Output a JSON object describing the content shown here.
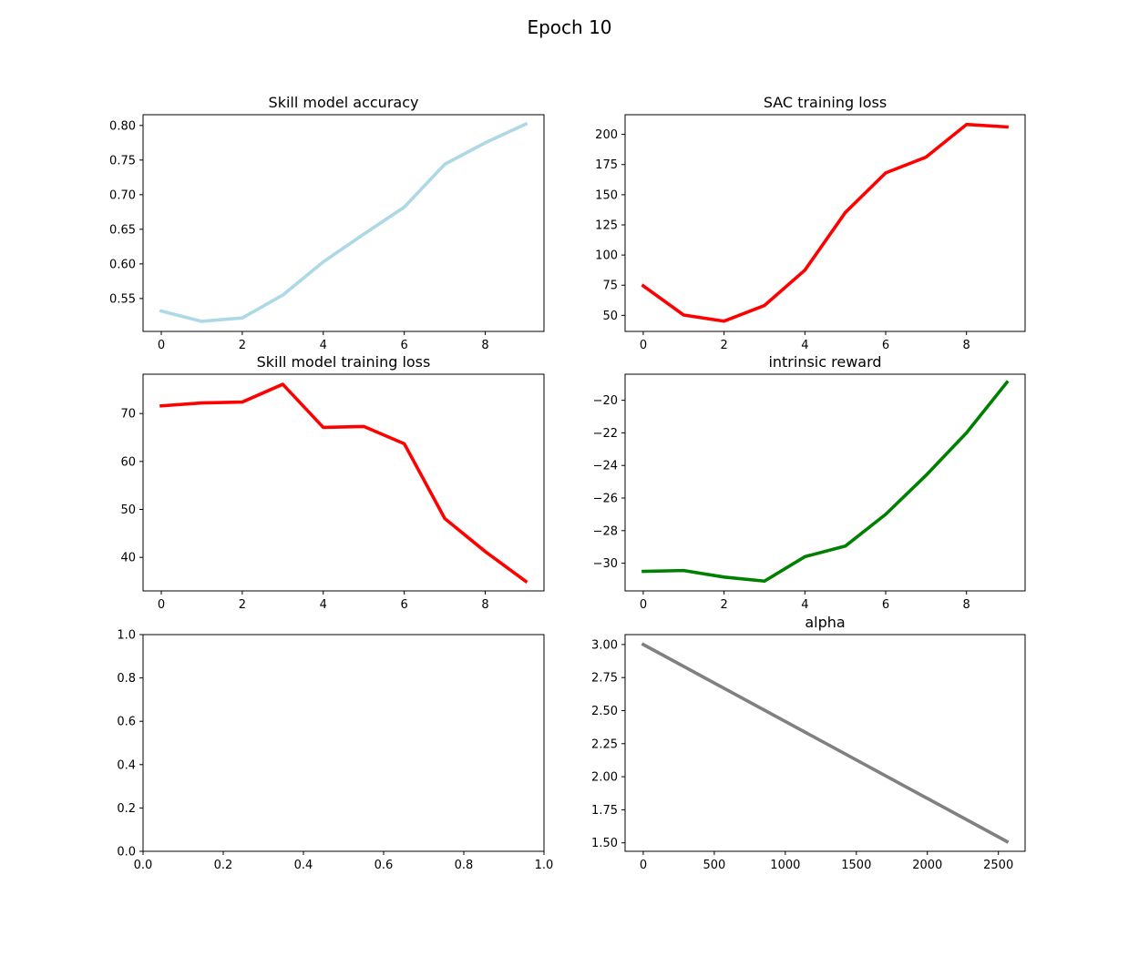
{
  "figure": {
    "suptitle": "Epoch 10"
  },
  "chart_data": [
    {
      "type": "line",
      "title": "Skill model accuracy",
      "xlabel": "",
      "ylabel": "",
      "xlim": [
        -0.45,
        9.45
      ],
      "ylim": [
        0.5025,
        0.8155
      ],
      "xticks": [
        0,
        2,
        4,
        6,
        8
      ],
      "xtick_labels": [
        "0",
        "2",
        "4",
        "6",
        "8"
      ],
      "yticks": [
        0.55,
        0.6,
        0.65,
        0.7,
        0.75,
        0.8
      ],
      "ytick_labels": [
        "0.55",
        "0.60",
        "0.65",
        "0.70",
        "0.75",
        "0.80"
      ],
      "grid": false,
      "series": [
        {
          "color": "#add8e6",
          "x": [
            0,
            1,
            2,
            3,
            4,
            5,
            6,
            7,
            8,
            9
          ],
          "values": [
            0.532,
            0.517,
            0.522,
            0.555,
            0.603,
            0.643,
            0.682,
            0.744,
            0.775,
            0.802
          ]
        }
      ]
    },
    {
      "type": "line",
      "title": "SAC training loss",
      "xlabel": "",
      "ylabel": "",
      "xlim": [
        -0.45,
        9.45
      ],
      "ylim": [
        36.7,
        216.3
      ],
      "xticks": [
        0,
        2,
        4,
        6,
        8
      ],
      "xtick_labels": [
        "0",
        "2",
        "4",
        "6",
        "8"
      ],
      "yticks": [
        50,
        75,
        100,
        125,
        150,
        175,
        200
      ],
      "ytick_labels": [
        "50",
        "75",
        "100",
        "125",
        "150",
        "175",
        "200"
      ],
      "grid": false,
      "series": [
        {
          "color": "#ff0000",
          "x": [
            0,
            1,
            2,
            3,
            4,
            5,
            6,
            7,
            8,
            9
          ],
          "values": [
            74.5,
            50.3,
            45.2,
            58.2,
            87.5,
            135.2,
            168.1,
            181.2,
            208.2,
            206.2
          ]
        }
      ]
    },
    {
      "type": "line",
      "title": "Skill model training loss",
      "xlabel": "",
      "ylabel": "",
      "xlim": [
        -0.45,
        9.45
      ],
      "ylim": [
        33.0,
        78.2
      ],
      "xticks": [
        0,
        2,
        4,
        6,
        8
      ],
      "xtick_labels": [
        "0",
        "2",
        "4",
        "6",
        "8"
      ],
      "yticks": [
        40,
        50,
        60,
        70
      ],
      "ytick_labels": [
        "40",
        "50",
        "60",
        "70"
      ],
      "grid": false,
      "series": [
        {
          "color": "#ff0000",
          "x": [
            0,
            1,
            2,
            3,
            4,
            5,
            6,
            7,
            8,
            9
          ],
          "values": [
            71.6,
            72.2,
            72.4,
            76.1,
            67.1,
            67.3,
            63.7,
            48.1,
            41.2,
            35.0
          ]
        }
      ]
    },
    {
      "type": "line",
      "title": "intrinsic reward",
      "xlabel": "",
      "ylabel": "",
      "xlim": [
        -0.45,
        9.45
      ],
      "ylim": [
        -31.7,
        -18.4
      ],
      "xticks": [
        0,
        2,
        4,
        6,
        8
      ],
      "xtick_labels": [
        "0",
        "2",
        "4",
        "6",
        "8"
      ],
      "yticks": [
        -30,
        -28,
        -26,
        -24,
        -22,
        -20
      ],
      "ytick_labels": [
        "−30",
        "−28",
        "−26",
        "−24",
        "−22",
        "−20"
      ],
      "grid": false,
      "series": [
        {
          "color": "#008000",
          "x": [
            0,
            1,
            2,
            3,
            4,
            5,
            6,
            7,
            8,
            9
          ],
          "values": [
            -30.5,
            -30.45,
            -30.85,
            -31.1,
            -29.6,
            -28.95,
            -27.0,
            -24.6,
            -22.0,
            -18.9
          ]
        }
      ]
    },
    {
      "type": "line",
      "title": "",
      "xlabel": "",
      "ylabel": "",
      "xlim": [
        0.0,
        1.0
      ],
      "ylim": [
        0.0,
        1.0
      ],
      "xticks": [
        0.0,
        0.2,
        0.4,
        0.6,
        0.8,
        1.0
      ],
      "xtick_labels": [
        "0.0",
        "0.2",
        "0.4",
        "0.6",
        "0.8",
        "1.0"
      ],
      "yticks": [
        0.0,
        0.2,
        0.4,
        0.6,
        0.8,
        1.0
      ],
      "ytick_labels": [
        "0.0",
        "0.2",
        "0.4",
        "0.6",
        "0.8",
        "1.0"
      ],
      "grid": false,
      "series": []
    },
    {
      "type": "line",
      "title": "alpha",
      "xlabel": "",
      "ylabel": "",
      "xlim": [
        -128,
        2688
      ],
      "ylim": [
        1.436,
        3.075
      ],
      "xticks": [
        0,
        500,
        1000,
        1500,
        2000,
        2500
      ],
      "xtick_labels": [
        "0",
        "500",
        "1000",
        "1500",
        "2000",
        "2500"
      ],
      "yticks": [
        1.5,
        1.75,
        2.0,
        2.25,
        2.5,
        2.75,
        3.0
      ],
      "ytick_labels": [
        "1.50",
        "1.75",
        "2.00",
        "2.25",
        "2.50",
        "2.75",
        "3.00"
      ],
      "grid": false,
      "series": [
        {
          "color": "#808080",
          "x": [
            0,
            2560
          ],
          "values": [
            3.0,
            1.51
          ]
        }
      ]
    }
  ]
}
